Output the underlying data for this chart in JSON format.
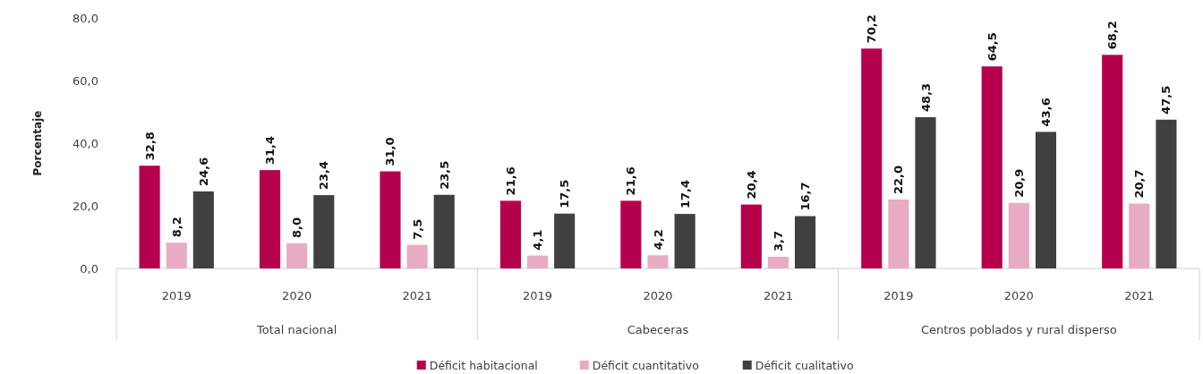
{
  "chart_data": {
    "type": "bar",
    "ylabel": "Porcentaje",
    "categories": [
      "2019",
      "2020",
      "2021",
      "2019",
      "2020",
      "2021",
      "2019",
      "2020",
      "2021"
    ],
    "annotations": [
      "Total nacional",
      "Cabeceras",
      "Centros poblados y rural disperso"
    ],
    "series": [
      {
        "name": "Déficit habitacional",
        "color": "#b5004b",
        "values": [
          32.8,
          31.4,
          31.0,
          21.6,
          21.6,
          20.4,
          70.2,
          64.5,
          68.2
        ],
        "value_labels": [
          "32,8",
          "31,4",
          "31,0",
          "21,6",
          "21,6",
          "20,4",
          "70,2",
          "64,5",
          "68,2"
        ]
      },
      {
        "name": "Déficit cuantitativo",
        "color": "#e8abc4",
        "values": [
          8.2,
          8.0,
          7.5,
          4.1,
          4.2,
          3.7,
          22.0,
          20.9,
          20.7
        ],
        "value_labels": [
          "8,2",
          "8,0",
          "7,5",
          "4,1",
          "4,2",
          "3,7",
          "22,0",
          "20,9",
          "20,7"
        ]
      },
      {
        "name": "Déficit cualitativo",
        "color": "#404040",
        "values": [
          24.6,
          23.4,
          23.5,
          17.5,
          17.4,
          16.7,
          48.3,
          43.6,
          47.5
        ],
        "value_labels": [
          "24,6",
          "23,4",
          "23,5",
          "17,5",
          "17,4",
          "16,7",
          "48,3",
          "43,6",
          "47,5"
        ]
      }
    ],
    "ylim": [
      0,
      80
    ],
    "yticks": [
      {
        "value": 0,
        "label": "0,0"
      },
      {
        "value": 20,
        "label": "20,0"
      },
      {
        "value": 40,
        "label": "40,0"
      },
      {
        "value": 60,
        "label": "60,0"
      },
      {
        "value": 80,
        "label": "80,0"
      }
    ],
    "grid": false,
    "legend": "bottom"
  }
}
